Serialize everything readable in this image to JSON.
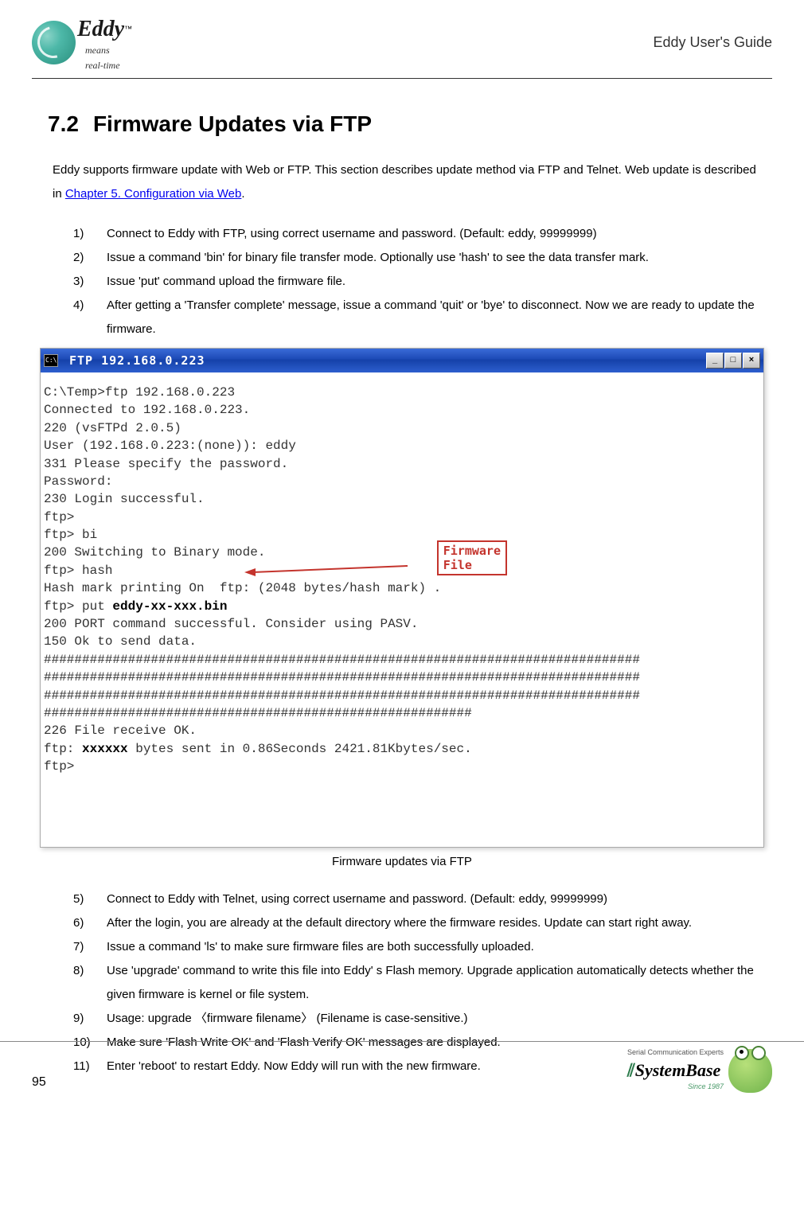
{
  "header": {
    "logo_text": "Eddy",
    "logo_tagline": "means\nreal-time",
    "guide_title": "Eddy User's Guide"
  },
  "section": {
    "number": "7.2",
    "title": "Firmware Updates via FTP"
  },
  "intro": {
    "text_before_link": "Eddy supports firmware update with Web or FTP. This section describes update method via FTP and Telnet. Web update is described in ",
    "link_text": "Chapter 5. Configuration via Web",
    "text_after_link": "."
  },
  "list_part1": [
    {
      "num": "1)",
      "text": "Connect to Eddy with FTP, using correct username and password. (Default: eddy, 99999999)"
    },
    {
      "num": "2)",
      "text": "Issue a command  'bin'  for binary file transfer mode. Optionally use  'hash'  to see the data transfer mark."
    },
    {
      "num": "3)",
      "text": "Issue  'put'  command upload the firmware file."
    },
    {
      "num": "4)",
      "text": "After getting a  'Transfer complete'  message, issue a command  'quit'  or  'bye'  to disconnect. Now we are ready to update the firmware."
    }
  ],
  "terminal": {
    "title": "FTP   192.168.0.223",
    "lines_before_put": "C:\\Temp>ftp 192.168.0.223\nConnected to 192.168.0.223.\n220 (vsFTPd 2.0.5)\nUser (192.168.0.223:(none)): eddy\n331 Please specify the password.\nPassword:\n230 Login successful.\nftp>\nftp> bi\n200 Switching to Binary mode.\nftp> hash\nHash mark printing On  ftp: (2048 bytes/hash mark) .\nftp> put ",
    "put_file": "eddy-xx-xxx.bin",
    "lines_after_put": "\n200 PORT command successful. Consider using PASV.\n150 Ok to send data.\n##############################################################################\n##############################################################################\n##############################################################################\n########################################################\n226 File receive OK.\nftp: ",
    "bytes_bold": "xxxxxx",
    "final": " bytes sent in 0.86Seconds 2421.81Kbytes/sec.\nftp>",
    "callout_label": "Firmware\nFile",
    "buttons": {
      "min": "_",
      "max": "□",
      "close": "×"
    }
  },
  "figure_caption": "Firmware updates via FTP",
  "list_part2": [
    {
      "num": "5)",
      "text": "Connect to Eddy with Telnet, using correct username and password. (Default: eddy, 99999999)"
    },
    {
      "num": "6)",
      "text": "After the login, you are already at the default directory where the firmware resides. Update can start right away."
    },
    {
      "num": "7)",
      "text": "Issue a command  'ls'  to make sure firmware files are both successfully uploaded."
    },
    {
      "num": "8)",
      "text": "Use  'upgrade'  command to write this file into Eddy' s Flash memory. Upgrade application automatically detects whether the given firmware is kernel or file system."
    },
    {
      "num": "9)",
      "text": "Usage: upgrade 〈firmware filename〉 (Filename is case-sensitive.)"
    },
    {
      "num": "10)",
      "text": "Make sure  'Flash Write OK'  and  'Flash Verify OK'  messages are displayed."
    },
    {
      "num": "11)",
      "text": "Enter  'reboot'  to restart Eddy. Now Eddy will run with the new firmware."
    }
  ],
  "footer": {
    "page_number": "95",
    "brand_tag": "Serial Communication Experts",
    "brand_name": "SystemBase",
    "brand_since": "Since 1987"
  },
  "colors": {
    "titlebar_gradient_top": "#3a6bd8",
    "titlebar_gradient_bottom": "#1440a8",
    "callout_red": "#c4342d",
    "link_blue": "#0000ee",
    "logo_teal": "#4db8a8",
    "frog_green": "#6fb34b"
  }
}
